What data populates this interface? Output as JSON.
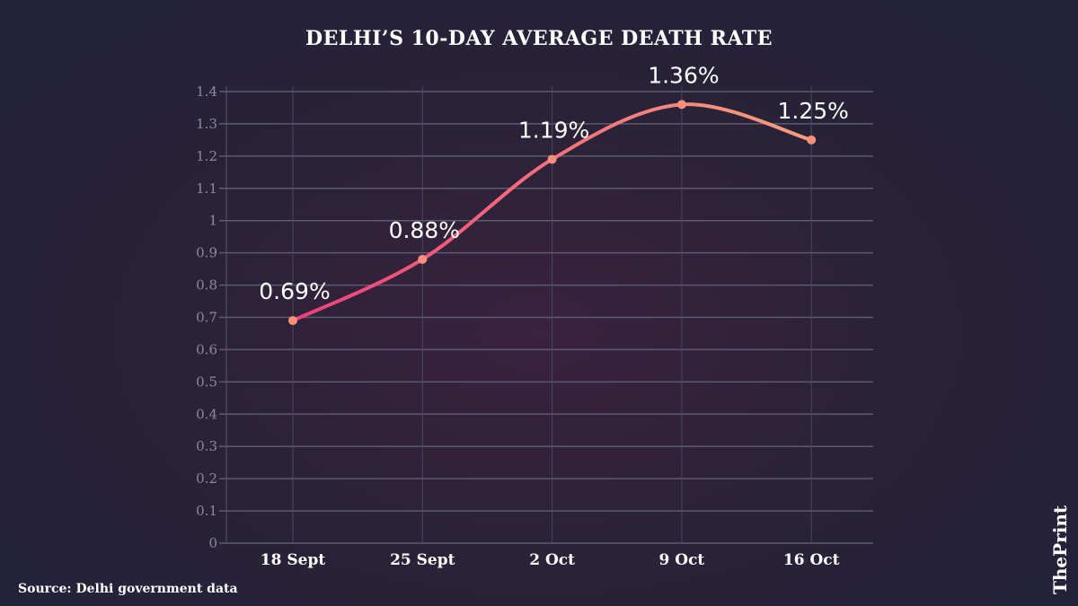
{
  "chart_data": {
    "type": "line",
    "title": "DELHI’S 10-DAY AVERAGE DEATH RATE",
    "categories": [
      "18 Sept",
      "25 Sept",
      "2 Oct",
      "9 Oct",
      "16 Oct"
    ],
    "values": [
      0.69,
      0.88,
      1.19,
      1.36,
      1.25
    ],
    "data_labels": [
      "0.69%",
      "0.88%",
      "1.19%",
      "1.36%",
      "1.25%"
    ],
    "yticks": [
      "0",
      "0.1",
      "0.2",
      "0.3",
      "0.4",
      "0.5",
      "0.6",
      "0.7",
      "0.8",
      "0.9",
      "1",
      "1.1",
      "1.2",
      "1.3",
      "1.4"
    ],
    "ylim": [
      0,
      1.4
    ],
    "xlabel": "",
    "ylabel": "",
    "grid": true,
    "line_colors": [
      "#f0407a",
      "#f7a07a"
    ]
  },
  "source": "Source: Delhi government data",
  "logo": "ThePrint"
}
